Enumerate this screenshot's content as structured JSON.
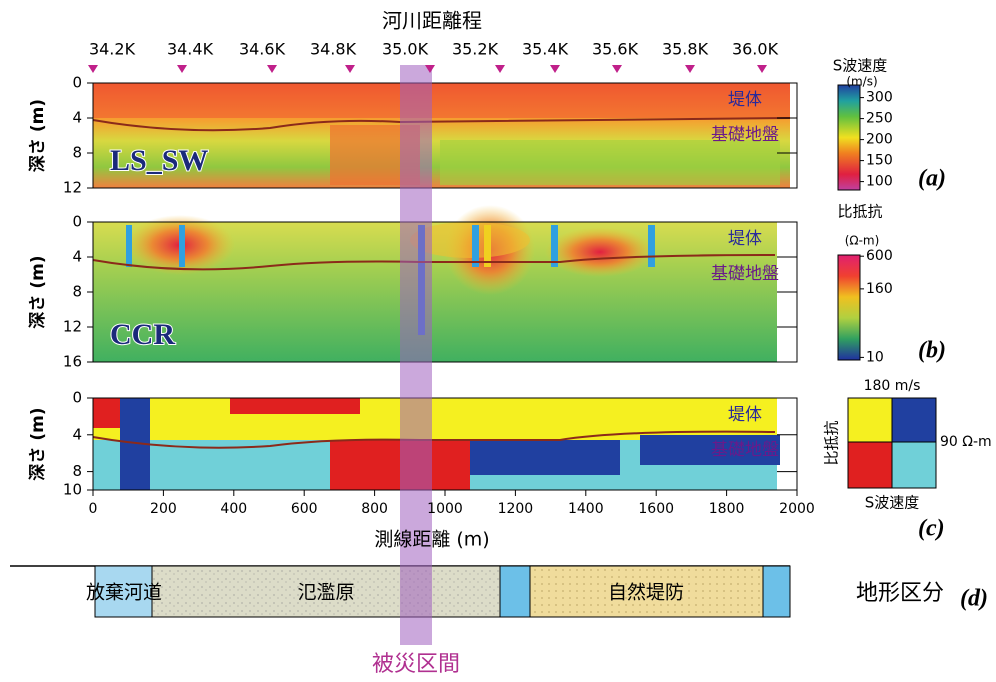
{
  "title": "河川距離程",
  "distance_markers": [
    "34.2K",
    "34.4K",
    "34.6K",
    "34.8K",
    "35.0K",
    "35.2K",
    "35.4K",
    "35.6K",
    "35.8K",
    "36.0K"
  ],
  "x_axis": {
    "label": "測線距離 (m)",
    "lim": [
      0,
      2000
    ],
    "ticks": [
      0,
      200,
      400,
      600,
      800,
      1000,
      1200,
      1400,
      1600,
      1800,
      2000
    ]
  },
  "panels": [
    {
      "id": "(a)",
      "method": "LS_SW",
      "ylabel": "深さ (m)",
      "ylim": [
        0,
        12
      ],
      "yticks": [
        0,
        4,
        8,
        12
      ],
      "layers": [
        "堤体",
        "基礎地盤"
      ]
    },
    {
      "id": "(b)",
      "method": "CCR",
      "ylabel": "深さ (m)",
      "ylim": [
        0,
        16
      ],
      "yticks": [
        0,
        4,
        8,
        12,
        16
      ],
      "layers": [
        "堤体",
        "基礎地盤"
      ]
    },
    {
      "id": "(c)",
      "ylabel": "深さ (m)",
      "ylim": [
        0,
        10
      ],
      "yticks": [
        0,
        4,
        8,
        10
      ],
      "layers": [
        "堤体",
        "基礎地盤"
      ]
    }
  ],
  "colorbars": [
    {
      "title": "S波速度",
      "unit": "(m/s)",
      "scale": "linear",
      "lim": [
        80,
        330
      ],
      "ticks": [
        300,
        250,
        200,
        150,
        100
      ]
    },
    {
      "title": "比抵抗",
      "unit": "(Ω-m)",
      "scale": "log",
      "lim": [
        9,
        630
      ],
      "ticks": [
        600,
        160,
        10
      ]
    }
  ],
  "legend_c": {
    "top": "180 m/s",
    "right": "90 Ω-m",
    "left": "比抵抗",
    "bottom": "S波速度"
  },
  "terrain": {
    "id": "(d)",
    "title": "地形区分",
    "units": [
      "放棄河道",
      "氾濫原",
      "自然堤防"
    ]
  },
  "damage_label": "被災区間"
}
